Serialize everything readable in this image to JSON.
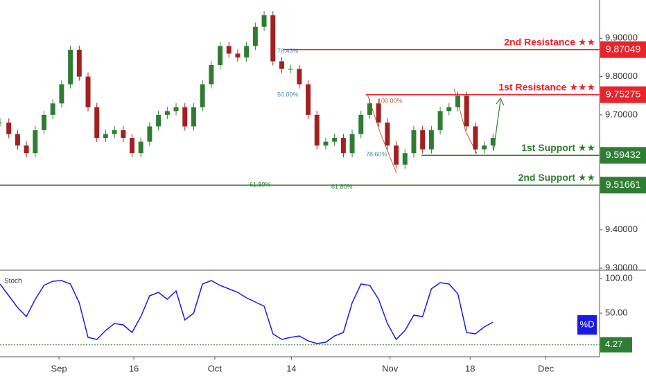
{
  "chart_data": [
    {
      "type": "candlestick",
      "values": [
        9.68,
        9.65,
        9.62,
        9.6,
        9.66,
        9.7,
        9.73,
        9.78,
        9.87,
        9.8,
        9.72,
        9.64,
        9.65,
        9.66,
        9.64,
        9.6,
        9.63,
        9.67,
        9.7,
        9.71,
        9.72,
        9.67,
        9.72,
        9.78,
        9.83,
        9.88,
        9.86,
        9.85,
        9.88,
        9.93,
        9.96,
        9.84,
        9.82,
        9.82,
        9.78,
        9.7,
        9.62,
        9.63,
        9.64,
        9.6,
        9.65,
        9.7,
        9.73,
        9.68,
        9.62,
        9.57,
        9.6,
        9.66,
        9.61,
        9.66,
        9.71,
        9.72,
        9.75,
        9.67,
        9.61,
        9.62,
        9.64
      ],
      "colors": {
        "up": "#2e7d32",
        "down": "#a32020"
      },
      "xlim": [
        0,
        68.1
      ],
      "xticks": [
        {
          "value": 6.7,
          "label": "Sep"
        },
        {
          "value": 15.2,
          "label": "16"
        },
        {
          "value": 24.4,
          "label": "Oct"
        },
        {
          "value": 33.1,
          "label": "14"
        },
        {
          "value": 44.3,
          "label": "Nov"
        },
        {
          "value": 53.4,
          "label": "18"
        },
        {
          "value": 62.0,
          "label": "Dec"
        }
      ],
      "ylim": [
        9.3,
        10.0
      ],
      "yticks": [
        {
          "value": 9.9,
          "label": "9.90000"
        },
        {
          "value": 9.8,
          "label": "9.80000"
        },
        {
          "value": 9.7,
          "label": "9.70000"
        },
        {
          "value": 9.4,
          "label": "9.40000"
        },
        {
          "value": 9.3,
          "label": "9.30000"
        }
      ],
      "levels": [
        {
          "name": "2nd Resistance ★★",
          "value": 9.87049,
          "color": "#e8232b"
        },
        {
          "name": "1st Resistance ★★★",
          "value": 9.75275,
          "color": "#e8232b"
        },
        {
          "name": "1st Support ★★",
          "value": 9.59432,
          "color": "#2e7d32"
        },
        {
          "name": "2nd Support ★★",
          "value": 9.51661,
          "color": "#2e7d32"
        }
      ],
      "fib_labels": [
        "76.43%",
        "50.00%",
        "100.00%",
        "78.60%",
        "61.80%",
        "61.80%"
      ]
    },
    {
      "type": "line",
      "title": "Stoch",
      "series": [
        {
          "name": "%D",
          "color": "#1a1ae6",
          "values": [
            92,
            75,
            58,
            45,
            70,
            90,
            96,
            97,
            92,
            65,
            15,
            12,
            25,
            35,
            33,
            22,
            45,
            75,
            80,
            70,
            82,
            40,
            50,
            92,
            97,
            90,
            85,
            80,
            72,
            66,
            60,
            20,
            12,
            15,
            17,
            10,
            6,
            8,
            17,
            22,
            65,
            92,
            90,
            70,
            35,
            12,
            25,
            47,
            45,
            85,
            94,
            92,
            78,
            22,
            20,
            30,
            37
          ]
        }
      ],
      "xlim": [
        0,
        68.1
      ],
      "ylim": [
        -13,
        112
      ],
      "yticks": [
        {
          "value": 100,
          "label": "100.00"
        },
        {
          "value": 50,
          "label": "50.00"
        }
      ],
      "level": {
        "value": 4.27,
        "label": "4.27",
        "color": "#2e7d32"
      }
    }
  ]
}
